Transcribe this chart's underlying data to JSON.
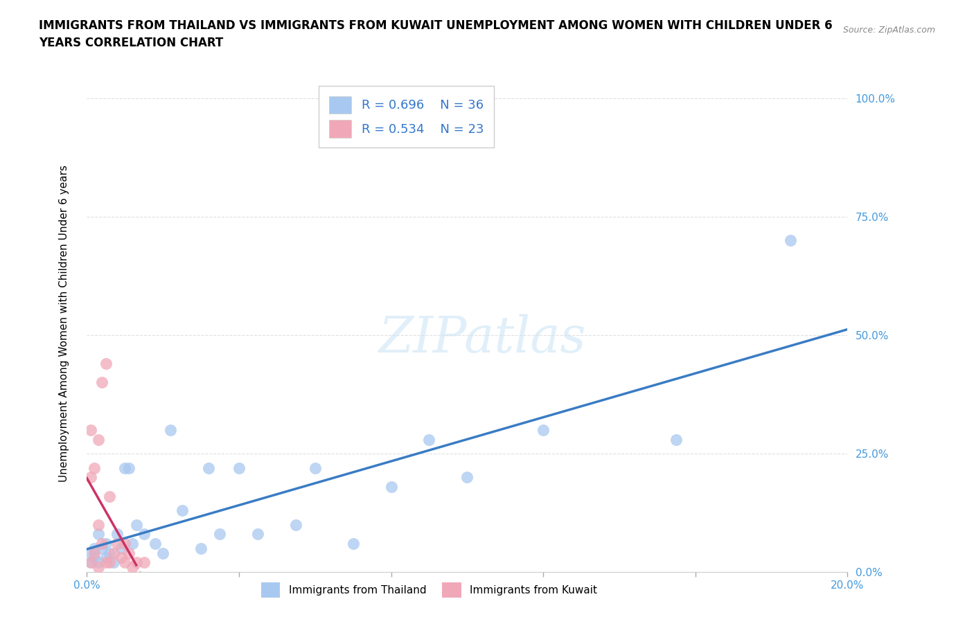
{
  "title": "IMMIGRANTS FROM THAILAND VS IMMIGRANTS FROM KUWAIT UNEMPLOYMENT AMONG WOMEN WITH CHILDREN UNDER 6\nYEARS CORRELATION CHART",
  "source": "Source: ZipAtlas.com",
  "xlabel": "",
  "ylabel": "Unemployment Among Women with Children Under 6 years",
  "xlim": [
    0,
    0.2
  ],
  "ylim": [
    0,
    1.05
  ],
  "yticks": [
    0.0,
    0.25,
    0.5,
    0.75,
    1.0
  ],
  "ytick_labels": [
    "0.0%",
    "25.0%",
    "50.0%",
    "75.0%",
    "100.0%"
  ],
  "xticks": [
    0.0,
    0.04,
    0.08,
    0.12,
    0.16,
    0.2
  ],
  "xtick_labels": [
    "0.0%",
    "",
    "",
    "",
    "",
    "20.0%"
  ],
  "thailand_color": "#a8c8f0",
  "kuwait_color": "#f0a8b8",
  "trendline_thailand_color": "#3a7cc4",
  "trendline_kuwait_color": "#cc3366",
  "trendline_kuwait_dashed_color": "#e0b0c0",
  "legend_R_thailand": "R = 0.696",
  "legend_N_thailand": "N = 36",
  "legend_R_kuwait": "R = 0.534",
  "legend_N_kuwait": "N = 23",
  "watermark": "ZIPatlas",
  "background_color": "#ffffff",
  "grid_color": "#dddddd",
  "thailand_x": [
    0.001,
    0.001,
    0.002,
    0.002,
    0.003,
    0.003,
    0.004,
    0.005,
    0.005,
    0.006,
    0.007,
    0.008,
    0.009,
    0.01,
    0.011,
    0.012,
    0.013,
    0.015,
    0.018,
    0.02,
    0.022,
    0.025,
    0.03,
    0.032,
    0.035,
    0.04,
    0.045,
    0.055,
    0.06,
    0.07,
    0.08,
    0.09,
    0.1,
    0.12,
    0.155,
    0.185
  ],
  "thailand_y": [
    0.02,
    0.04,
    0.03,
    0.05,
    0.02,
    0.08,
    0.05,
    0.03,
    0.06,
    0.04,
    0.02,
    0.08,
    0.05,
    0.22,
    0.22,
    0.06,
    0.1,
    0.08,
    0.06,
    0.04,
    0.3,
    0.13,
    0.05,
    0.22,
    0.08,
    0.22,
    0.08,
    0.1,
    0.22,
    0.06,
    0.18,
    0.28,
    0.2,
    0.3,
    0.28,
    0.7
  ],
  "kuwait_x": [
    0.001,
    0.001,
    0.001,
    0.002,
    0.002,
    0.003,
    0.003,
    0.003,
    0.004,
    0.004,
    0.005,
    0.005,
    0.006,
    0.006,
    0.007,
    0.008,
    0.009,
    0.01,
    0.01,
    0.011,
    0.012,
    0.013,
    0.015
  ],
  "kuwait_y": [
    0.02,
    0.2,
    0.3,
    0.04,
    0.22,
    0.1,
    0.28,
    0.01,
    0.06,
    0.4,
    0.44,
    0.02,
    0.02,
    0.16,
    0.04,
    0.06,
    0.03,
    0.02,
    0.06,
    0.04,
    0.01,
    0.02,
    0.02
  ]
}
